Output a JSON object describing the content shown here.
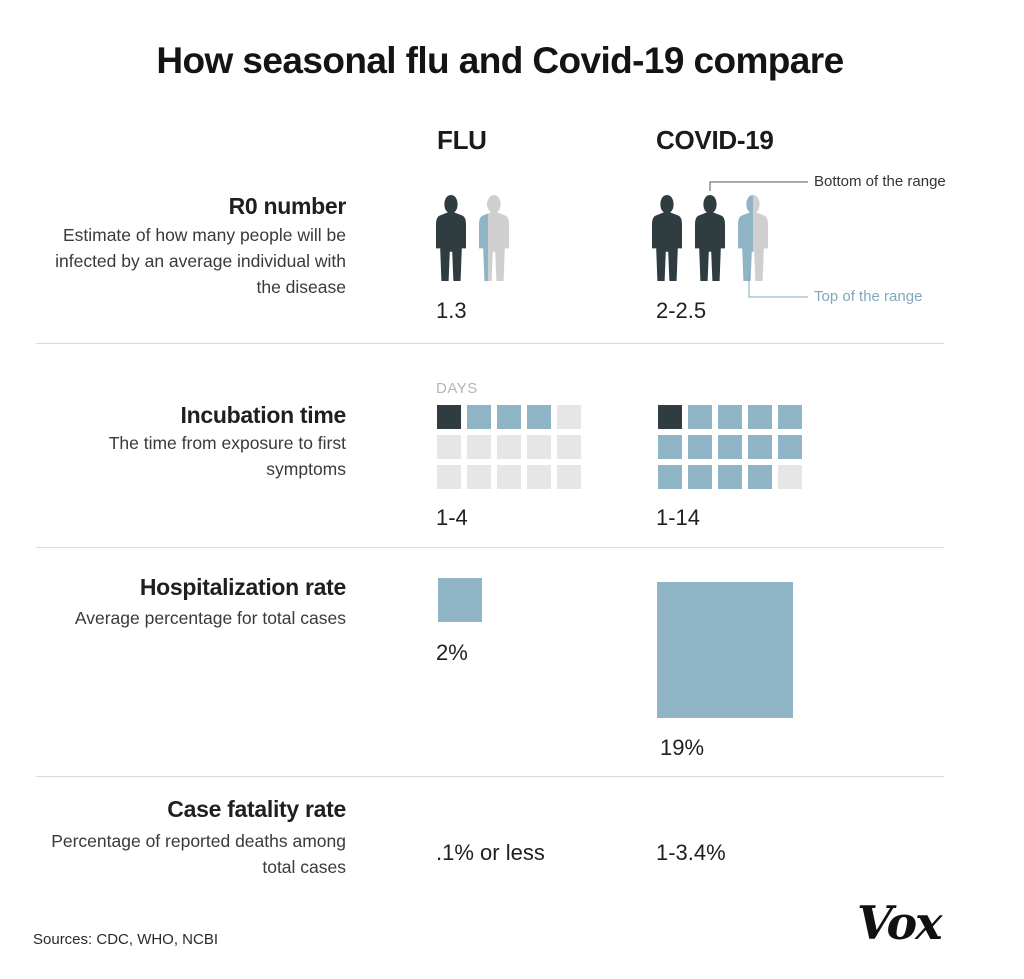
{
  "title": "How seasonal flu and Covid-19 compare",
  "columns": {
    "flu": "FLU",
    "covid": "COVID-19"
  },
  "rows": {
    "r0": {
      "title": "R0 number",
      "description": "Estimate of how many people will be infected by an average individual with the disease",
      "flu_value": "1.3",
      "covid_value": "2-2.5",
      "annotation_bottom": "Bottom of the range",
      "annotation_top": "Top of the range"
    },
    "incubation": {
      "title": "Incubation time",
      "description": "The time from exposure to first symptoms",
      "days_label": "DAYS",
      "flu_value": "1-4",
      "covid_value": "1-14"
    },
    "hospitalization": {
      "title": "Hospitalization rate",
      "description": "Average percentage for total cases",
      "flu_value": "2%",
      "covid_value": "19%"
    },
    "fatality": {
      "title": "Case fatality rate",
      "description": "Percentage of reported deaths among total cases",
      "flu_value": ".1% or less",
      "covid_value": "1-3.4%"
    }
  },
  "chart_data": {
    "type": "table",
    "columns": [
      "FLU",
      "COVID-19"
    ],
    "r0": {
      "flu": [
        1.3,
        1.3
      ],
      "covid": [
        2,
        2.5
      ]
    },
    "incubation_days": {
      "flu": [
        1,
        4
      ],
      "covid": [
        1,
        14
      ],
      "grid_cells": 15
    },
    "hospitalization_pct": {
      "flu": 2,
      "covid": 19
    },
    "case_fatality_pct": {
      "flu": [
        0,
        0.1
      ],
      "covid": [
        1,
        3.4
      ]
    }
  },
  "colors": {
    "dark": "#2f3c40",
    "blue": "#8fb4c5",
    "light_gray": "#e6e6e6",
    "figure_gray": "#cfcfcf",
    "accent_blue": "#7fa8bb"
  },
  "footer": {
    "sources": "Sources: CDC, WHO,  NCBI",
    "logo": "Vox"
  }
}
